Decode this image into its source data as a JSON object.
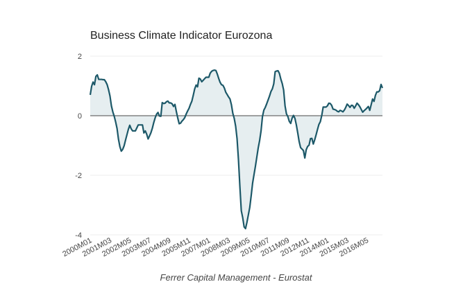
{
  "chart_data": {
    "type": "area",
    "title": "Business Climate Indicator Eurozona",
    "caption": "Ferrer Capital Management - Eurostat",
    "xlabel": "",
    "ylabel": "",
    "start_period": "2000M01",
    "ylim": [
      -4,
      2
    ],
    "yticks": [
      2,
      0,
      -2,
      -4
    ],
    "ytick_labels": [
      "2",
      "0",
      "-2",
      "-4"
    ],
    "xtick_labels": [
      "2000M01",
      "2001M03",
      "2002M05",
      "2003M07",
      "2004M09",
      "2005M11",
      "2007M01",
      "2008M03",
      "2009M05",
      "2010M07",
      "2011M09",
      "2012M11",
      "2014M01",
      "2015M03",
      "2016M05"
    ],
    "xtick_index": [
      0,
      14,
      28,
      42,
      56,
      70,
      84,
      98,
      112,
      126,
      140,
      154,
      168,
      182,
      196
    ],
    "grid": true,
    "baseline": 0,
    "colors": {
      "line": "#1c5868",
      "fill": "#e6eef0",
      "zero_line": "#6b6b6b",
      "grid": "#eeeeee"
    },
    "control_points": [
      [
        0,
        0.7
      ],
      [
        1.6,
        1.17
      ],
      [
        3.3,
        1.01
      ],
      [
        4.4,
        1.5
      ],
      [
        5.7,
        1.22
      ],
      [
        10.3,
        1.21
      ],
      [
        12.3,
        1.01
      ],
      [
        14,
        0.66
      ],
      [
        15.3,
        0.23
      ],
      [
        16.9,
        0.0
      ],
      [
        18.9,
        -0.39
      ],
      [
        20.5,
        -0.97
      ],
      [
        22.2,
        -1.22
      ],
      [
        23.8,
        -1.05
      ],
      [
        26.3,
        -0.58
      ],
      [
        27.9,
        -0.31
      ],
      [
        29.6,
        -0.51
      ],
      [
        32,
        -0.51
      ],
      [
        34,
        -0.31
      ],
      [
        37,
        -0.31
      ],
      [
        38.3,
        -0.66
      ],
      [
        39.4,
        -0.43
      ],
      [
        40.6,
        -0.82
      ],
      [
        42.2,
        -0.66
      ],
      [
        43.5,
        -0.51
      ],
      [
        45.2,
        -0.19
      ],
      [
        46.8,
        0.04
      ],
      [
        48.1,
        0.12
      ],
      [
        49.8,
        -0.12
      ],
      [
        50.9,
        0.44
      ],
      [
        52.5,
        0.39
      ],
      [
        54.7,
        0.51
      ],
      [
        56.7,
        0.39
      ],
      [
        57.5,
        0.51
      ],
      [
        58.6,
        0.27
      ],
      [
        59.9,
        0.4
      ],
      [
        61.6,
        0.0
      ],
      [
        63.2,
        -0.31
      ],
      [
        64.9,
        -0.19
      ],
      [
        66.8,
        -0.08
      ],
      [
        68.5,
        0.12
      ],
      [
        69.8,
        0.23
      ],
      [
        71.1,
        0.39
      ],
      [
        72.2,
        0.51
      ],
      [
        73.4,
        0.78
      ],
      [
        74.7,
        1.05
      ],
      [
        76,
        0.97
      ],
      [
        77.2,
        1.32
      ],
      [
        78.8,
        1.13
      ],
      [
        80.5,
        1.21
      ],
      [
        82.6,
        1.32
      ],
      [
        83.7,
        1.25
      ],
      [
        85.4,
        1.48
      ],
      [
        87.5,
        1.53
      ],
      [
        89.2,
        1.52
      ],
      [
        90.8,
        1.28
      ],
      [
        92.5,
        1.05
      ],
      [
        94.4,
        1.01
      ],
      [
        96.1,
        0.78
      ],
      [
        98.1,
        0.62
      ],
      [
        99.4,
        0.54
      ],
      [
        101,
        0.08
      ],
      [
        102.6,
        -0.19
      ],
      [
        104.3,
        -0.89
      ],
      [
        105.6,
        -1.98
      ],
      [
        106.8,
        -3.15
      ],
      [
        107.9,
        -3.39
      ],
      [
        109.5,
        -3.89
      ],
      [
        111.2,
        -3.54
      ],
      [
        113.3,
        -3.0
      ],
      [
        114.9,
        -2.3
      ],
      [
        117.1,
        -1.67
      ],
      [
        119.1,
        -1.05
      ],
      [
        120.7,
        -0.66
      ],
      [
        122.3,
        0.12
      ],
      [
        124.3,
        0.31
      ],
      [
        126.4,
        0.58
      ],
      [
        128.6,
        0.89
      ],
      [
        129.7,
        0.93
      ],
      [
        130.9,
        1.48
      ],
      [
        133.5,
        1.52
      ],
      [
        135.1,
        1.21
      ],
      [
        136.8,
        0.97
      ],
      [
        138.4,
        0.12
      ],
      [
        140.1,
        -0.04
      ],
      [
        141.7,
        -0.31
      ],
      [
        143.7,
        0.04
      ],
      [
        145.3,
        -0.12
      ],
      [
        147,
        -0.58
      ],
      [
        148.6,
        -1.05
      ],
      [
        151.1,
        -1.17
      ],
      [
        152.2,
        -1.48
      ],
      [
        153.2,
        -1.05
      ],
      [
        154.9,
        -1.01
      ],
      [
        156.5,
        -0.66
      ],
      [
        158.1,
        -0.97
      ],
      [
        160.1,
        -0.62
      ],
      [
        161.8,
        -0.31
      ],
      [
        163.4,
        -0.16
      ],
      [
        165,
        0.29
      ],
      [
        167.5,
        0.29
      ],
      [
        169.1,
        0.43
      ],
      [
        170.8,
        0.39
      ],
      [
        171.6,
        0.23
      ],
      [
        174,
        0.19
      ],
      [
        175.7,
        0.12
      ],
      [
        177.3,
        0.19
      ],
      [
        178.9,
        0.12
      ],
      [
        180.6,
        0.23
      ],
      [
        182.2,
        0.41
      ],
      [
        183.9,
        0.27
      ],
      [
        185.5,
        0.39
      ],
      [
        187.2,
        0.23
      ],
      [
        188.8,
        0.43
      ],
      [
        190.5,
        0.35
      ],
      [
        192.9,
        0.12
      ],
      [
        195.4,
        0.23
      ],
      [
        197,
        0.31
      ],
      [
        198.2,
        0.16
      ],
      [
        199.8,
        0.58
      ],
      [
        201.1,
        0.47
      ],
      [
        202.5,
        0.8
      ],
      [
        204.8,
        0.8
      ],
      [
        206.1,
        1.07
      ],
      [
        207,
        0.93
      ]
    ],
    "n_points": 208
  }
}
